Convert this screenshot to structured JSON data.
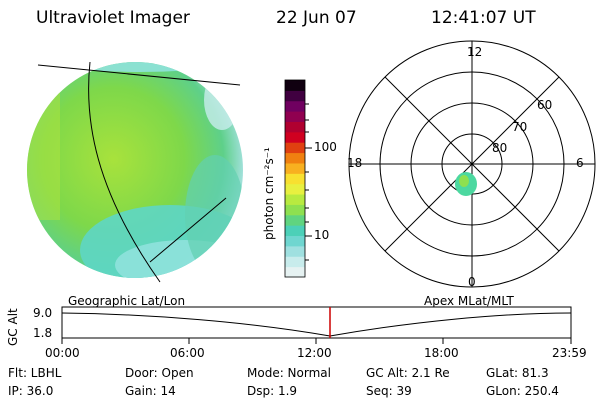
{
  "header": {
    "title": "Ultraviolet Imager",
    "date": "22 Jun 07",
    "time": "12:41:07 UT"
  },
  "colorbar": {
    "unit_label": "photon cm⁻²s⁻¹",
    "tick_100": "100",
    "tick_10": "10",
    "colors": [
      "#e6f2f2",
      "#c8ecec",
      "#9fe0e0",
      "#6fd6d0",
      "#4cd0b8",
      "#60d480",
      "#8ee050",
      "#b8ea40",
      "#e8f040",
      "#f8e030",
      "#f8b020",
      "#f08010",
      "#e04010",
      "#d00020",
      "#b00030",
      "#900050",
      "#700060",
      "#400040",
      "#100010"
    ]
  },
  "polar": {
    "labels": {
      "top": "12",
      "right": "6",
      "left": "18",
      "bottom": "0",
      "lat60": "60",
      "lat70": "70",
      "lat80": "80"
    }
  },
  "timeline": {
    "ylabel": "GC Alt",
    "y_top": "9.0",
    "y_bot": "1.8",
    "left_caption": "Geographic Lat/Lon",
    "right_caption": "Apex  MLat/MLT",
    "ticks": [
      "00:00",
      "06:00",
      "12:00",
      "18:00",
      "23:59"
    ]
  },
  "info": {
    "flt": "Flt: LBHL",
    "door": "Door: Open",
    "mode": "Mode: Normal",
    "gcalt": "GC Alt: 2.1 Re",
    "glat": "GLat:  81.3",
    "ip": "IP: 36.0",
    "gain": "Gain: 14",
    "dsp": "Dsp:     1.9",
    "seq": "Seq: 39",
    "glon": "GLon: 250.4"
  }
}
